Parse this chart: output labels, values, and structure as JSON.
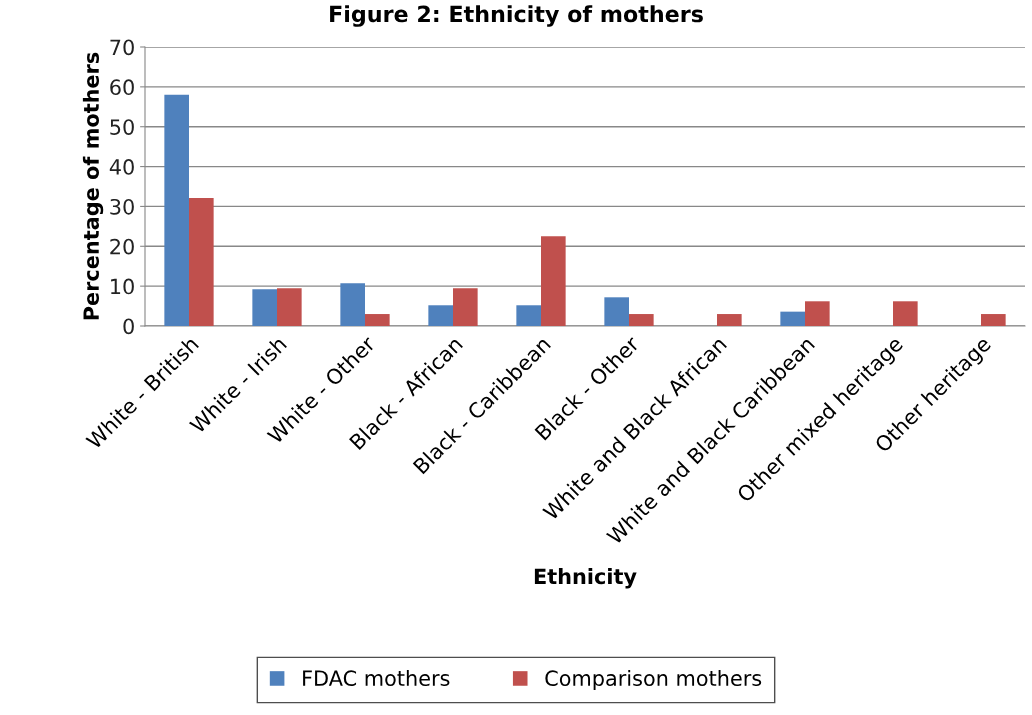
{
  "chart_data": {
    "type": "bar",
    "title": "Figure 2: Ethnicity of mothers",
    "xlabel": "Ethnicity",
    "ylabel": "Percentage of mothers",
    "categories": [
      "White - British",
      "White - Irish",
      "White - Other",
      "Black - African",
      "Black - Caribbean",
      "Black - Other",
      "White and Black African",
      "White and Black Caribbean",
      "Other mixed heritage",
      "Other heritage"
    ],
    "series": [
      {
        "name": "FDAC mothers",
        "color": "#4f81bd",
        "values": [
          58.0,
          9.2,
          10.7,
          5.2,
          5.2,
          7.2,
          null,
          3.6,
          null,
          null
        ]
      },
      {
        "name": "Comparison mothers",
        "color": "#c0504d",
        "values": [
          32.1,
          9.5,
          3.0,
          9.5,
          22.5,
          3.0,
          3.0,
          6.2,
          6.2,
          3.0
        ]
      }
    ],
    "ylim": [
      0,
      70
    ],
    "yticks": [
      0,
      10,
      20,
      30,
      40,
      50,
      60,
      70
    ],
    "grid": "y",
    "legend": "bottom"
  }
}
